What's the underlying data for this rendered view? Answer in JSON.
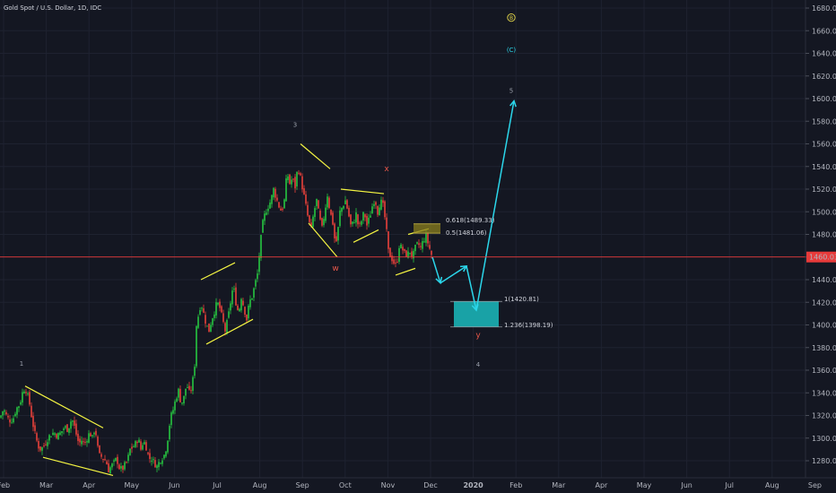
{
  "header": {
    "title": "Gold Spot / U.S. Dollar, 1D, IDC"
  },
  "colors": {
    "background": "#141722",
    "grid": "#1e2230",
    "up": "#26c640",
    "down": "#e8413a",
    "pattern": "#f5f542",
    "projection": "#2bd6ea",
    "target_zone": "#19a2a6",
    "fib_zone": "#8a7f1d",
    "price_line": "#e83a3a",
    "wave_label": "#9ba0ab",
    "wave_xy": "#e8574a"
  },
  "chart_data": {
    "type": "candlestick",
    "title": "Gold Spot / U.S. Dollar, 1D, IDC",
    "ylim": [
      1265,
      1690
    ],
    "y_ticks": [
      1280,
      1300,
      1320,
      1340,
      1360,
      1380,
      1400,
      1420,
      1440,
      1460,
      1480,
      1500,
      1520,
      1540,
      1560,
      1580,
      1600,
      1620,
      1640,
      1660,
      1680
    ],
    "y_tick_labels": [
      "1280.00",
      "1300.00",
      "1320.00",
      "1340.00",
      "1360.00",
      "1380.00",
      "1400.00",
      "1420.00",
      "1440.00",
      "1460.00",
      "1480.00",
      "1500.00",
      "1520.00",
      "1540.00",
      "1560.00",
      "1580.00",
      "1600.00",
      "1620.00",
      "1640.00",
      "1660.00",
      "1680.00"
    ],
    "x_labels": [
      "Feb",
      "Mar",
      "Apr",
      "May",
      "Jun",
      "Jul",
      "Aug",
      "Sep",
      "Oct",
      "Nov",
      "Dec",
      "2020",
      "Feb",
      "Mar",
      "Apr",
      "May",
      "Jun",
      "Jul",
      "Aug",
      "Sep"
    ],
    "last_price": 1460.03,
    "last_price_label": "1460.03",
    "price_path": [
      [
        0,
        1318
      ],
      [
        4,
        1326
      ],
      [
        8,
        1318
      ],
      [
        12,
        1315
      ],
      [
        15,
        1318
      ],
      [
        18,
        1326
      ],
      [
        22,
        1330
      ],
      [
        25,
        1340
      ],
      [
        28,
        1345
      ],
      [
        30,
        1340
      ],
      [
        33,
        1330
      ],
      [
        36,
        1315
      ],
      [
        40,
        1300
      ],
      [
        44,
        1290
      ],
      [
        48,
        1292
      ],
      [
        52,
        1298
      ],
      [
        56,
        1303
      ],
      [
        60,
        1305
      ],
      [
        64,
        1302
      ],
      [
        68,
        1305
      ],
      [
        72,
        1310
      ],
      [
        75,
        1308
      ],
      [
        78,
        1312
      ],
      [
        80,
        1318
      ],
      [
        83,
        1310
      ],
      [
        86,
        1300
      ],
      [
        88,
        1295
      ],
      [
        91,
        1298
      ],
      [
        94,
        1295
      ],
      [
        97,
        1300
      ],
      [
        100,
        1305
      ],
      [
        103,
        1300
      ],
      [
        106,
        1310
      ],
      [
        110,
        1285
      ],
      [
        114,
        1283
      ],
      [
        118,
        1280
      ],
      [
        121,
        1272
      ],
      [
        124,
        1275
      ],
      [
        127,
        1278
      ],
      [
        130,
        1282
      ],
      [
        133,
        1274
      ],
      [
        136,
        1272
      ],
      [
        139,
        1276
      ],
      [
        142,
        1280
      ],
      [
        145,
        1290
      ],
      [
        148,
        1292
      ],
      [
        151,
        1295
      ],
      [
        154,
        1300
      ],
      [
        157,
        1290
      ],
      [
        160,
        1298
      ],
      [
        163,
        1292
      ],
      [
        166,
        1282
      ],
      [
        169,
        1282
      ],
      [
        172,
        1278
      ],
      [
        175,
        1275
      ],
      [
        178,
        1280
      ],
      [
        181,
        1283
      ],
      [
        184,
        1286
      ],
      [
        187,
        1300
      ],
      [
        190,
        1318
      ],
      [
        193,
        1325
      ],
      [
        196,
        1335
      ],
      [
        199,
        1342
      ],
      [
        202,
        1330
      ],
      [
        205,
        1336
      ],
      [
        208,
        1348
      ],
      [
        211,
        1340
      ],
      [
        214,
        1345
      ],
      [
        217,
        1365
      ],
      [
        219,
        1400
      ],
      [
        221,
        1408
      ],
      [
        224,
        1420
      ],
      [
        227,
        1410
      ],
      [
        230,
        1400
      ],
      [
        233,
        1395
      ],
      [
        236,
        1405
      ],
      [
        239,
        1412
      ],
      [
        242,
        1420
      ],
      [
        245,
        1415
      ],
      [
        248,
        1405
      ],
      [
        251,
        1395
      ],
      [
        254,
        1405
      ],
      [
        257,
        1420
      ],
      [
        260,
        1435
      ],
      [
        263,
        1420
      ],
      [
        266,
        1410
      ],
      [
        269,
        1425
      ],
      [
        272,
        1415
      ],
      [
        275,
        1405
      ],
      [
        278,
        1420
      ],
      [
        281,
        1425
      ],
      [
        284,
        1435
      ],
      [
        287,
        1445
      ],
      [
        290,
        1470
      ],
      [
        293,
        1490
      ],
      [
        296,
        1500
      ],
      [
        299,
        1505
      ],
      [
        302,
        1510
      ],
      [
        305,
        1520
      ],
      [
        308,
        1512
      ],
      [
        311,
        1505
      ],
      [
        314,
        1500
      ],
      [
        317,
        1510
      ],
      [
        320,
        1535
      ],
      [
        323,
        1525
      ],
      [
        326,
        1530
      ],
      [
        329,
        1522
      ],
      [
        332,
        1540
      ],
      [
        335,
        1530
      ],
      [
        338,
        1518
      ],
      [
        341,
        1505
      ],
      [
        344,
        1492
      ],
      [
        347,
        1485
      ],
      [
        350,
        1500
      ],
      [
        353,
        1510
      ],
      [
        356,
        1495
      ],
      [
        359,
        1485
      ],
      [
        362,
        1500
      ],
      [
        365,
        1515
      ],
      [
        368,
        1500
      ],
      [
        371,
        1490
      ],
      [
        374,
        1470
      ],
      [
        376,
        1478
      ],
      [
        379,
        1500
      ],
      [
        382,
        1505
      ],
      [
        385,
        1510
      ],
      [
        388,
        1500
      ],
      [
        391,
        1488
      ],
      [
        394,
        1490
      ],
      [
        397,
        1498
      ],
      [
        400,
        1485
      ],
      [
        403,
        1492
      ],
      [
        406,
        1500
      ],
      [
        409,
        1488
      ],
      [
        412,
        1495
      ],
      [
        415,
        1505
      ],
      [
        418,
        1512
      ],
      [
        421,
        1500
      ],
      [
        424,
        1510
      ],
      [
        427,
        1505
      ],
      [
        430,
        1490
      ],
      [
        433,
        1465
      ],
      [
        436,
        1460
      ],
      [
        439,
        1455
      ],
      [
        442,
        1452
      ],
      [
        445,
        1470
      ],
      [
        448,
        1468
      ],
      [
        451,
        1463
      ],
      [
        454,
        1462
      ],
      [
        457,
        1465
      ],
      [
        460,
        1460
      ],
      [
        463,
        1468
      ],
      [
        466,
        1472
      ],
      [
        469,
        1468
      ],
      [
        472,
        1475
      ],
      [
        475,
        1478
      ],
      [
        478,
        1470
      ],
      [
        481,
        1462
      ]
    ],
    "patterns": [
      {
        "type": "wedge",
        "upper": [
          [
            28,
            1346
          ],
          [
            115,
            1309
          ]
        ],
        "lower": [
          [
            48,
            1283
          ],
          [
            126,
            1267
          ]
        ]
      },
      {
        "type": "channel",
        "upper": [
          [
            224,
            1440
          ],
          [
            262,
            1455
          ]
        ],
        "lower": [
          [
            230,
            1383
          ],
          [
            282,
            1405
          ]
        ]
      },
      {
        "type": "wedge",
        "upper": [
          [
            335,
            1560
          ],
          [
            368,
            1538
          ]
        ],
        "lower": [
          [
            344,
            1490
          ],
          [
            376,
            1460
          ]
        ]
      },
      {
        "type": "channel",
        "upper": [
          [
            380,
            1520
          ],
          [
            428,
            1516
          ]
        ],
        "lower": [
          [
            394,
            1473
          ],
          [
            422,
            1484
          ]
        ]
      },
      {
        "type": "channel",
        "upper": [
          [
            455,
            1480
          ],
          [
            478,
            1485
          ]
        ],
        "lower": [
          [
            441,
            1444
          ],
          [
            463,
            1450
          ]
        ]
      }
    ],
    "fib_zone": {
      "x1": 461,
      "x2": 491,
      "y_low": 1481.06,
      "y_high": 1489.33
    },
    "target_zone": {
      "x1": 506,
      "x2": 556,
      "y_low": 1398.19,
      "y_high": 1420.81
    },
    "projection_path": [
      [
        482,
        1460
      ],
      [
        491,
        1437
      ],
      [
        520,
        1452
      ],
      [
        531,
        1413
      ],
      [
        573,
        1598
      ]
    ],
    "annotations": [
      {
        "text": "0.618(1489.33)",
        "x": 497,
        "y": 1490.5,
        "kind": "fib"
      },
      {
        "text": "0.5(1481.06)",
        "x": 497,
        "y": 1479.5,
        "kind": "fib"
      },
      {
        "text": "1(1420.81)",
        "x": 562,
        "y": 1421,
        "kind": "fib"
      },
      {
        "text": "1.236(1398.19)",
        "x": 562,
        "y": 1398,
        "kind": "fib"
      },
      {
        "text": "1",
        "x": 24,
        "y": 1364,
        "kind": "wave"
      },
      {
        "text": "3",
        "x": 329,
        "y": 1575,
        "kind": "wave"
      },
      {
        "text": "w",
        "x": 374,
        "y": 1448,
        "kind": "wave_xy"
      },
      {
        "text": "x",
        "x": 431,
        "y": 1536,
        "kind": "wave_xy"
      },
      {
        "text": "y",
        "x": 533,
        "y": 1389,
        "kind": "wave_xy"
      },
      {
        "text": "4",
        "x": 533,
        "y": 1363,
        "kind": "wave"
      },
      {
        "text": "5",
        "x": 570,
        "y": 1605,
        "kind": "wave"
      },
      {
        "text": "(C)",
        "x": 570,
        "y": 1641,
        "kind": "cycle_c"
      },
      {
        "text": "B",
        "x": 570,
        "y": 1670,
        "kind": "cycle_b"
      }
    ]
  }
}
